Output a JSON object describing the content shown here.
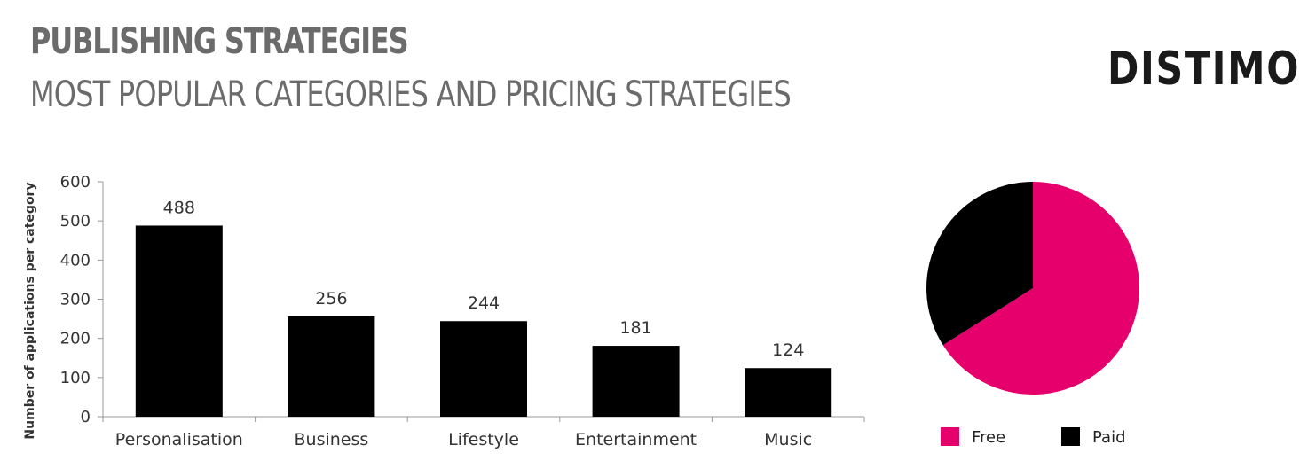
{
  "header": {
    "title": "PUBLISHING STRATEGIES",
    "subtitle": "MOST POPULAR CATEGORIES AND PRICING STRATEGIES",
    "logo": "DISTIMO"
  },
  "chart_data": [
    {
      "type": "bar",
      "categories": [
        "Personalisation",
        "Business",
        "Lifestyle",
        "Entertainment",
        "Music"
      ],
      "values": [
        488,
        256,
        244,
        181,
        124
      ],
      "data_labels": [
        "488",
        "256",
        "244",
        "181",
        "124"
      ],
      "ylabel": "Number of applications per category",
      "xlabel": "",
      "ylim": [
        0,
        600
      ],
      "yticks": [
        0,
        100,
        200,
        300,
        400,
        500,
        600
      ],
      "ytick_labels": [
        "0",
        "100",
        "200",
        "300",
        "400",
        "500",
        "600"
      ],
      "bar_color": "#000000",
      "grid": false
    },
    {
      "type": "pie",
      "labels": [
        "Free",
        "Paid"
      ],
      "values": [
        66,
        34
      ],
      "colors": [
        "#e6006b",
        "#000000"
      ],
      "legend_position": "bottom"
    }
  ]
}
